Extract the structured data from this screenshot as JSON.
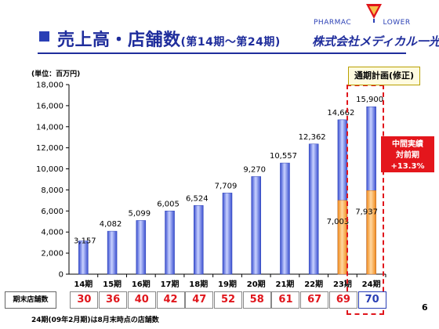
{
  "header": {
    "title": "売上高・店舗数",
    "subtitle": "(第14期～第24期)",
    "logo_text": "PHARMAC",
    "logo_text2": "LOWER",
    "company": "株式会社メディカル一光"
  },
  "unit_label": "(単位：百万円)",
  "plan_label": "通期計画(修正)",
  "mid_result": {
    "line1": "中間実績",
    "line2": "対前期+13.3%"
  },
  "store_label": "期末店舗数",
  "stores": [
    "30",
    "36",
    "40",
    "42",
    "47",
    "52",
    "58",
    "61",
    "67",
    "69",
    "70"
  ],
  "footnote": "24期(09年2月期)は8月末時点の店舗数",
  "page_number": "6",
  "colors": {
    "bar_blue": "#6f83e8",
    "bar_orange": "#f7a94a",
    "title": "#1f2d9c",
    "accent_red": "#e0161c"
  },
  "chart_data": {
    "type": "bar",
    "categories": [
      "14期",
      "15期",
      "16期",
      "17期",
      "18期",
      "19期",
      "20期",
      "21期",
      "22期",
      "23期",
      "24期"
    ],
    "values": [
      3157,
      4082,
      5099,
      6005,
      6524,
      7709,
      9270,
      10557,
      12362,
      14662,
      15900
    ],
    "value_labels": [
      "3,157",
      "4,082",
      "5,099",
      "6,005",
      "6,524",
      "7,709",
      "9,270",
      "10,557",
      "12,362",
      "14,662",
      "15,900"
    ],
    "interim": {
      "categories": [
        "23期",
        "24期"
      ],
      "values": [
        7003,
        7937
      ],
      "value_labels": [
        "7,003",
        "7,937"
      ]
    },
    "ylim": [
      0,
      18000
    ],
    "yticks": [
      0,
      2000,
      4000,
      6000,
      8000,
      10000,
      12000,
      14000,
      16000,
      18000
    ],
    "ytick_labels": [
      "0",
      "2,000",
      "4,000",
      "6,000",
      "8,000",
      "10,000",
      "12,000",
      "14,000",
      "16,000",
      "18,000"
    ],
    "grid": false,
    "legend": "none"
  }
}
